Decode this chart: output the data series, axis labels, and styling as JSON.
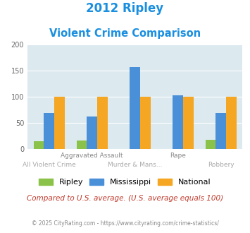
{
  "title_line1": "2012 Ripley",
  "title_line2": "Violent Crime Comparison",
  "categories": [
    "All Violent Crime",
    "Aggravated Assault",
    "Murder & Mans...",
    "Rape",
    "Robbery"
  ],
  "ripley": [
    15,
    16,
    0,
    0,
    18
  ],
  "mississippi": [
    69,
    62,
    156,
    103,
    69
  ],
  "national": [
    100,
    100,
    100,
    100,
    100
  ],
  "ripley_color": "#8bc34a",
  "mississippi_color": "#4a90d9",
  "national_color": "#f5a623",
  "bg_color": "#dce9ef",
  "ylim": [
    0,
    200
  ],
  "yticks": [
    0,
    50,
    100,
    150,
    200
  ],
  "top_xlabels": {
    "1": "Aggravated Assault",
    "3": "Rape"
  },
  "bottom_xlabels": {
    "0": "All Violent Crime",
    "2": "Murder & Mans...",
    "4": "Robbery"
  },
  "footnote": "Compared to U.S. average. (U.S. average equals 100)",
  "credit": "© 2025 CityRating.com - https://www.cityrating.com/crime-statistics/",
  "title_color": "#1a8fe0",
  "top_label_color": "#888888",
  "bottom_label_color": "#aaaaaa",
  "footnote_color": "#c0392b",
  "credit_color": "#888888"
}
